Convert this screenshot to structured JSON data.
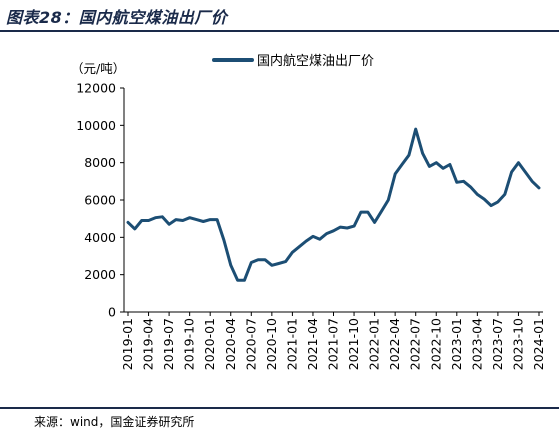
{
  "header": {
    "title": "图表28：国内航空煤油出厂价"
  },
  "footer": {
    "source": "来源：wind，国金证券研究所"
  },
  "chart_data": {
    "type": "line",
    "unit_label": "（元/吨）",
    "ylim": [
      0,
      12000
    ],
    "yticks": [
      0,
      2000,
      4000,
      6000,
      8000,
      10000,
      12000
    ],
    "xtick_labels": [
      "2019-01",
      "2019-04",
      "2019-07",
      "2019-10",
      "2020-01",
      "2020-04",
      "2020-07",
      "2020-10",
      "2021-01",
      "2021-04",
      "2021-07",
      "2021-10",
      "2022-01",
      "2022-04",
      "2022-07",
      "2022-10",
      "2023-01",
      "2023-04",
      "2023-07",
      "2023-10",
      "2024-01"
    ],
    "grid": false,
    "legend_position": "top-right",
    "color": "#1c4e74",
    "series": [
      {
        "name": "国内航空煤油出厂价",
        "x": [
          "2019-01",
          "2019-02",
          "2019-03",
          "2019-04",
          "2019-05",
          "2019-06",
          "2019-07",
          "2019-08",
          "2019-09",
          "2019-10",
          "2019-11",
          "2019-12",
          "2020-01",
          "2020-02",
          "2020-03",
          "2020-04",
          "2020-05",
          "2020-06",
          "2020-07",
          "2020-08",
          "2020-09",
          "2020-10",
          "2020-11",
          "2020-12",
          "2021-01",
          "2021-02",
          "2021-03",
          "2021-04",
          "2021-05",
          "2021-06",
          "2021-07",
          "2021-08",
          "2021-09",
          "2021-10",
          "2021-11",
          "2021-12",
          "2022-01",
          "2022-02",
          "2022-03",
          "2022-04",
          "2022-05",
          "2022-06",
          "2022-07",
          "2022-08",
          "2022-09",
          "2022-10",
          "2022-11",
          "2022-12",
          "2023-01",
          "2023-02",
          "2023-03",
          "2023-04",
          "2023-05",
          "2023-06",
          "2023-07",
          "2023-08",
          "2023-09",
          "2023-10",
          "2023-11",
          "2023-12",
          "2024-01"
        ],
        "values": [
          4800,
          4450,
          4900,
          4900,
          5050,
          5100,
          4700,
          4950,
          4900,
          5050,
          4950,
          4850,
          4950,
          4950,
          3850,
          2500,
          1700,
          1700,
          2650,
          2800,
          2800,
          2500,
          2600,
          2700,
          3200,
          3500,
          3800,
          4050,
          3900,
          4200,
          4350,
          4550,
          4500,
          4600,
          5350,
          5350,
          4800,
          5400,
          6000,
          7400,
          7900,
          8400,
          9800,
          8500,
          7800,
          8000,
          7700,
          7900,
          6950,
          7000,
          6700,
          6300,
          6050,
          5700,
          5900,
          6300,
          7500,
          8000,
          7500,
          7000,
          6650
        ]
      }
    ]
  }
}
